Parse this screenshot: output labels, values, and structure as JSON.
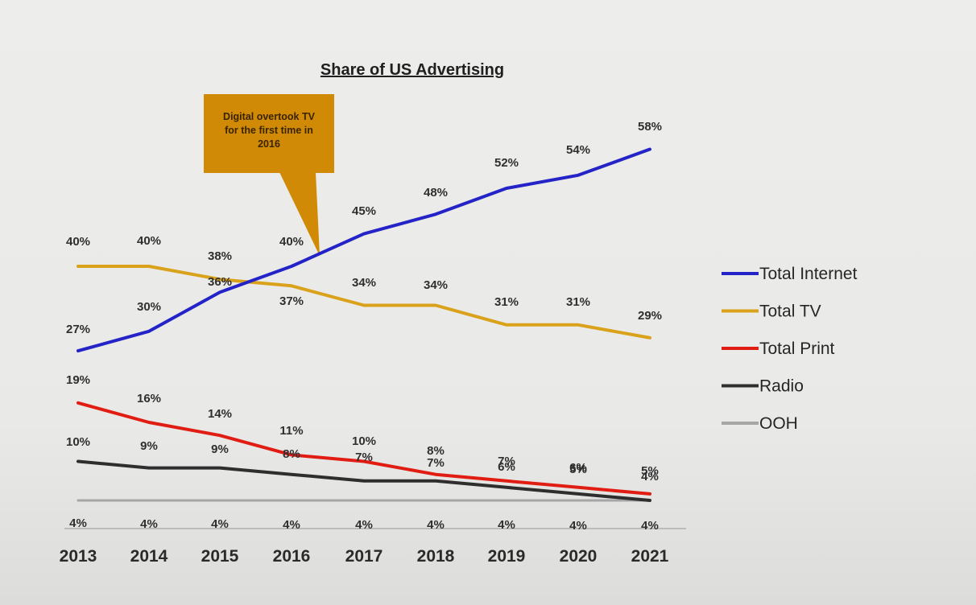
{
  "chart_data": {
    "type": "line",
    "title": "Share of US Advertising",
    "x": [
      "2013",
      "2014",
      "2015",
      "2016",
      "2017",
      "2018",
      "2019",
      "2020",
      "2021"
    ],
    "series": [
      {
        "name": "Total Internet",
        "color": "#2323c8",
        "values": [
          27,
          30,
          36,
          40,
          45,
          48,
          52,
          54,
          58
        ],
        "labels": [
          "27%",
          "30%",
          "36%",
          "40%",
          "45%",
          "48%",
          "52%",
          "54%",
          "58%"
        ]
      },
      {
        "name": "Total TV",
        "color": "#d9a21a",
        "values": [
          40,
          40,
          38,
          37,
          34,
          34,
          31,
          31,
          29
        ],
        "labels": [
          "40%",
          "40%",
          "38%",
          "37%",
          "34%",
          "34%",
          "31%",
          "31%",
          "29%"
        ]
      },
      {
        "name": "Total Print",
        "color": "#e11c12",
        "values": [
          19,
          16,
          14,
          11,
          10,
          8,
          7,
          6,
          5
        ],
        "labels": [
          "19%",
          "16%",
          "14%",
          "11%",
          "10%",
          "8%",
          "7%",
          "6%",
          "5%"
        ]
      },
      {
        "name": "Radio",
        "color": "#2e2e2e",
        "values": [
          10,
          9,
          9,
          8,
          7,
          7,
          6,
          5,
          4
        ],
        "labels": [
          "10%",
          "9%",
          "9%",
          "8%",
          "7%",
          "7%",
          "6%",
          "5%",
          "4%"
        ]
      },
      {
        "name": "OOH",
        "color": "#a6a6a6",
        "values": [
          4,
          4,
          4,
          4,
          4,
          4,
          4,
          4,
          4
        ],
        "labels": [
          "4%",
          "4%",
          "4%",
          "4%",
          "4%",
          "4%",
          "4%",
          "4%",
          "4%"
        ]
      }
    ],
    "ylim": [
      0,
      60
    ],
    "grid": false,
    "legend": "right",
    "annotations": [
      {
        "text_lines": [
          "Digital  overtook TV",
          "for the first  time in",
          "2016"
        ],
        "color": "#d08a06",
        "points_to_x": "2016"
      }
    ]
  }
}
